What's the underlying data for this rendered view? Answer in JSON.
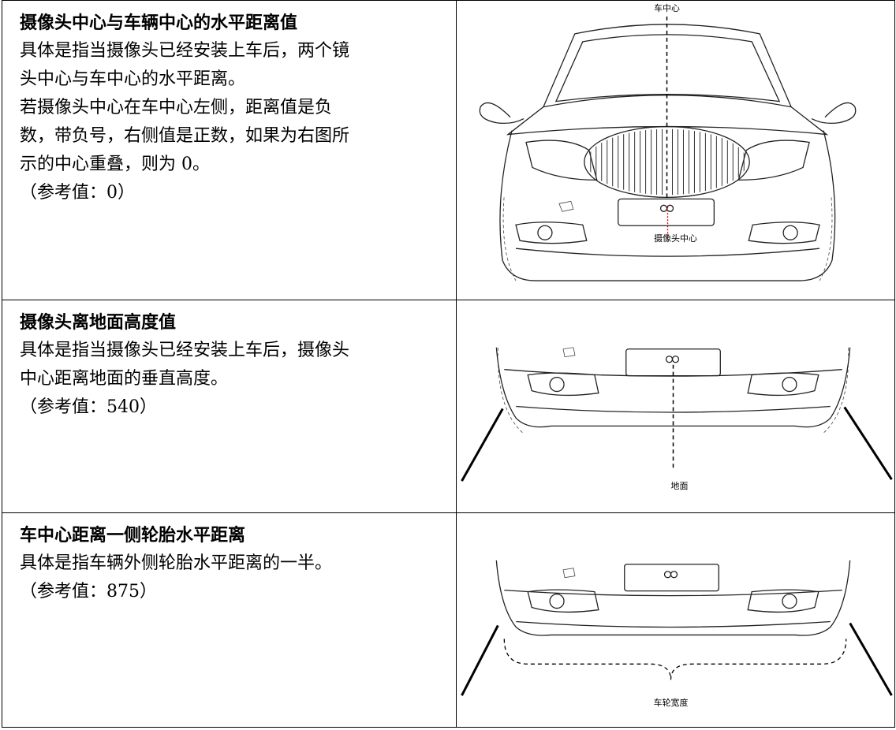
{
  "rows": [
    {
      "title": "摄像头中心与车辆中心的水平距离值",
      "lines": [
        "具体是指当摄像头已经安装上车后，两个镜",
        "头中心与车中心的水平距离。",
        "若摄像头中心在车中心左侧，距离值是负",
        "数，带负号，右侧值是正数，如果为右图所",
        "示的中心重叠，则为 0。",
        "（参考值：0）"
      ],
      "labels": [
        "车中心",
        "摄像头中心"
      ]
    },
    {
      "title": "摄像头离地面高度值",
      "lines": [
        "具体是指当摄像头已经安装上车后，摄像头",
        "中心距离地面的垂直高度。",
        "（参考值：540）"
      ],
      "labels": [
        "地面"
      ]
    },
    {
      "title": "车中心距离一侧轮胎水平距离",
      "lines": [
        "具体是指车辆外侧轮胎水平距离的一半。",
        "（参考值：875）"
      ],
      "labels": [
        "车轮宽度"
      ]
    }
  ]
}
